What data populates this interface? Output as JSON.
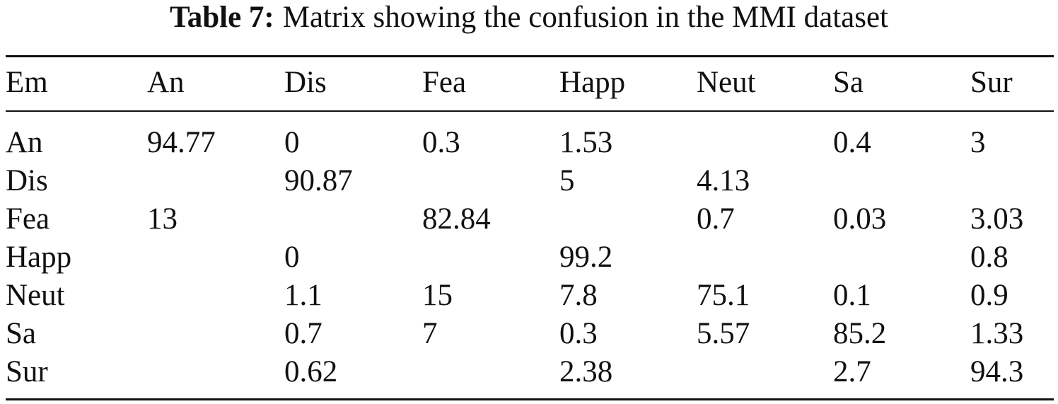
{
  "caption": {
    "label": "Table 7:",
    "text": "Matrix showing the confusion in the MMI dataset"
  },
  "table": {
    "header": [
      "Em",
      "An",
      "Dis",
      "Fea",
      "Happ",
      "Neut",
      "Sa",
      "Sur"
    ],
    "rows": [
      [
        "An",
        "94.77",
        "0",
        "0.3",
        "1.53",
        null,
        "0.4",
        "3"
      ],
      [
        "Dis",
        null,
        "90.87",
        null,
        "5",
        "4.13",
        null,
        null
      ],
      [
        "Fea",
        "13",
        null,
        "82.84",
        null,
        "0.7",
        "0.03",
        "3.03"
      ],
      [
        "Happ",
        null,
        "0",
        null,
        "99.2",
        null,
        null,
        "0.8"
      ],
      [
        "Neut",
        null,
        "1.1",
        "15",
        "7.8",
        "75.1",
        "0.1",
        "0.9"
      ],
      [
        "Sa",
        null,
        "0.7",
        "7",
        "0.3",
        "5.57",
        "85.2",
        "1.33"
      ],
      [
        "Sur",
        null,
        "0.62",
        null,
        "2.38",
        null,
        "2.7",
        "94.3"
      ]
    ]
  }
}
